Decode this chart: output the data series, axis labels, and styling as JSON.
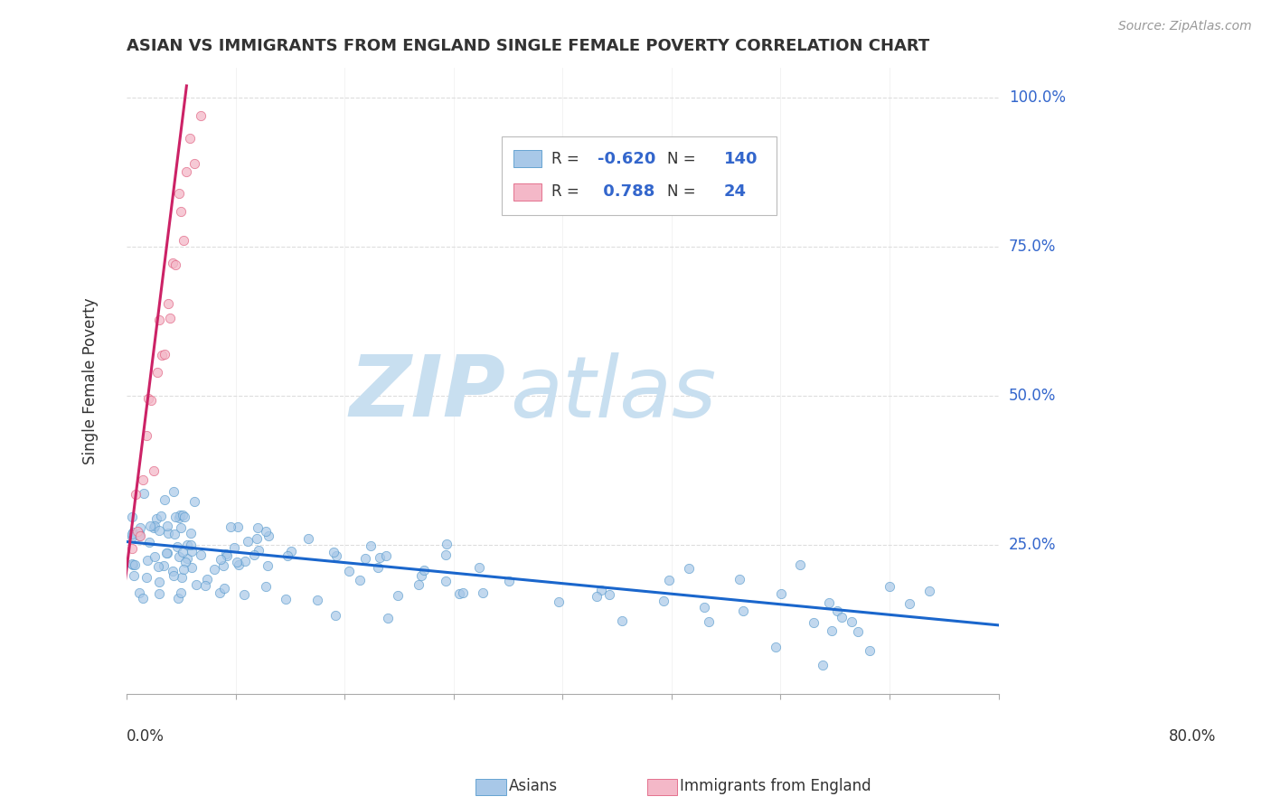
{
  "title": "ASIAN VS IMMIGRANTS FROM ENGLAND SINGLE FEMALE POVERTY CORRELATION CHART",
  "source": "Source: ZipAtlas.com",
  "ylabel": "Single Female Poverty",
  "xlim": [
    0.0,
    0.8
  ],
  "ylim": [
    0.0,
    1.05
  ],
  "ytick_labels": [
    "25.0%",
    "50.0%",
    "75.0%",
    "100.0%"
  ],
  "ytick_values": [
    0.25,
    0.5,
    0.75,
    1.0
  ],
  "blue_color": "#a8c8e8",
  "blue_edge": "#5599cc",
  "pink_color": "#f4b8c8",
  "pink_edge": "#e06080",
  "trend_blue": "#1a66cc",
  "trend_pink": "#cc2266",
  "label_blue": "#3366cc",
  "watermark_zip": "#c8dff0",
  "watermark_atlas": "#c8dff0",
  "background_color": "#ffffff",
  "grid_color": "#dddddd",
  "title_fontsize": 13,
  "blue_trend_start_y": 0.255,
  "blue_trend_end_y": 0.115,
  "pink_trend_x0": -0.002,
  "pink_trend_y0": 0.18,
  "pink_trend_x1": 0.055,
  "pink_trend_y1": 1.02
}
